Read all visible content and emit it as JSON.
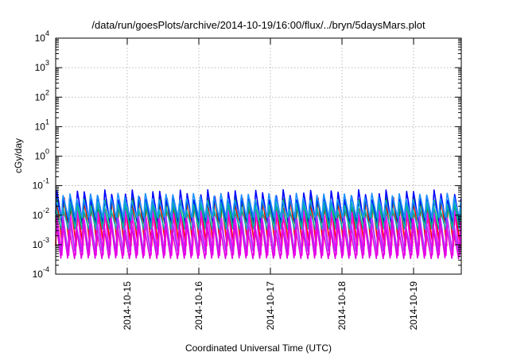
{
  "chart_data": {
    "type": "line",
    "title": "/data/run/goesPlots/archive/2014-10-19/16:00/flux/../bryn/5daysMars.plot",
    "xlabel": "Coordinated Universal Time (UTC)",
    "ylabel": "cGy/day",
    "x_range": [
      "2014-10-14 00:00",
      "2014-10-19 16:00"
    ],
    "x_tick_labels": [
      "2014-10-15",
      "2014-10-16",
      "2014-10-17",
      "2014-10-18",
      "2014-10-19"
    ],
    "x_ticks": [
      "2014-10-15 00:00",
      "2014-10-16 00:00",
      "2014-10-17 00:00",
      "2014-10-18 00:00",
      "2014-10-19 00:00"
    ],
    "yscale": "log",
    "ylim": [
      0.0001,
      10000
    ],
    "y_ticks": [
      0.0001,
      0.001,
      0.01,
      0.1,
      1,
      10,
      100,
      1000,
      10000
    ],
    "y_tick_labels": [
      {
        "base": "10",
        "exp": "-4"
      },
      {
        "base": "10",
        "exp": "-3"
      },
      {
        "base": "10",
        "exp": "-2"
      },
      {
        "base": "10",
        "exp": "-1"
      },
      {
        "base": "10",
        "exp": "0"
      },
      {
        "base": "10",
        "exp": "1"
      },
      {
        "base": "10",
        "exp": "2"
      },
      {
        "base": "10",
        "exp": "3"
      },
      {
        "base": "10",
        "exp": "4"
      }
    ],
    "grid": true,
    "legend": "none",
    "oscillation_period_hours": 2.3,
    "series": [
      {
        "color": "#ff0000",
        "peak": 0.05,
        "trough": 0.0009
      },
      {
        "color": "#00c000",
        "peak": 0.045,
        "trough": 0.004
      },
      {
        "color": "#0000ff",
        "peak": 0.08,
        "trough": 0.005
      },
      {
        "color": "#ff00ff",
        "peak": 0.02,
        "trough": 0.0004
      },
      {
        "color": "#00b0b0",
        "peak": 0.03,
        "trough": 0.003
      },
      {
        "color": "#1e90ff",
        "peak": 0.06,
        "trough": 0.008
      },
      {
        "color": "#a040ff",
        "peak": 0.012,
        "trough": 0.0005
      },
      {
        "color": "#e000e0",
        "peak": 0.008,
        "trough": 0.0003
      }
    ]
  }
}
